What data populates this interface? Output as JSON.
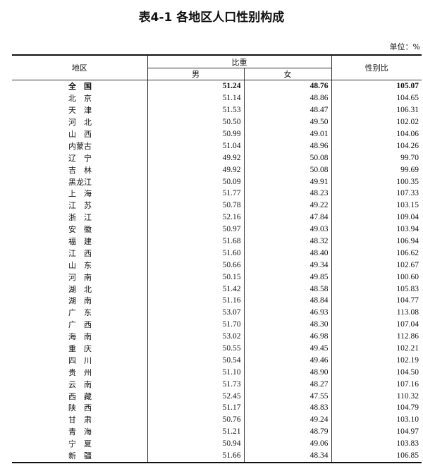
{
  "title": "表4-1 各地区人口性别构成",
  "unit": "单位：%",
  "headers": {
    "region": "地区",
    "share": "比重",
    "male": "男",
    "female": "女",
    "ratio": "性别比"
  },
  "rows": [
    {
      "region": "全　国",
      "male": "51.24",
      "female": "48.76",
      "ratio": "105.07"
    },
    {
      "region": "北　京",
      "male": "51.14",
      "female": "48.86",
      "ratio": "104.65"
    },
    {
      "region": "天　津",
      "male": "51.53",
      "female": "48.47",
      "ratio": "106.31"
    },
    {
      "region": "河　北",
      "male": "50.50",
      "female": "49.50",
      "ratio": "102.02"
    },
    {
      "region": "山　西",
      "male": "50.99",
      "female": "49.01",
      "ratio": "104.06"
    },
    {
      "region": "内蒙古",
      "male": "51.04",
      "female": "48.96",
      "ratio": "104.26"
    },
    {
      "region": "辽　宁",
      "male": "49.92",
      "female": "50.08",
      "ratio": "99.70"
    },
    {
      "region": "吉　林",
      "male": "49.92",
      "female": "50.08",
      "ratio": "99.69"
    },
    {
      "region": "黑龙江",
      "male": "50.09",
      "female": "49.91",
      "ratio": "100.35"
    },
    {
      "region": "上　海",
      "male": "51.77",
      "female": "48.23",
      "ratio": "107.33"
    },
    {
      "region": "江　苏",
      "male": "50.78",
      "female": "49.22",
      "ratio": "103.15"
    },
    {
      "region": "浙　江",
      "male": "52.16",
      "female": "47.84",
      "ratio": "109.04"
    },
    {
      "region": "安　徽",
      "male": "50.97",
      "female": "49.03",
      "ratio": "103.94"
    },
    {
      "region": "福　建",
      "male": "51.68",
      "female": "48.32",
      "ratio": "106.94"
    },
    {
      "region": "江　西",
      "male": "51.60",
      "female": "48.40",
      "ratio": "106.62"
    },
    {
      "region": "山　东",
      "male": "50.66",
      "female": "49.34",
      "ratio": "102.67"
    },
    {
      "region": "河　南",
      "male": "50.15",
      "female": "49.85",
      "ratio": "100.60"
    },
    {
      "region": "湖　北",
      "male": "51.42",
      "female": "48.58",
      "ratio": "105.83"
    },
    {
      "region": "湖　南",
      "male": "51.16",
      "female": "48.84",
      "ratio": "104.77"
    },
    {
      "region": "广　东",
      "male": "53.07",
      "female": "46.93",
      "ratio": "113.08"
    },
    {
      "region": "广　西",
      "male": "51.70",
      "female": "48.30",
      "ratio": "107.04"
    },
    {
      "region": "海　南",
      "male": "53.02",
      "female": "46.98",
      "ratio": "112.86"
    },
    {
      "region": "重　庆",
      "male": "50.55",
      "female": "49.45",
      "ratio": "102.21"
    },
    {
      "region": "四　川",
      "male": "50.54",
      "female": "49.46",
      "ratio": "102.19"
    },
    {
      "region": "贵　州",
      "male": "51.10",
      "female": "48.90",
      "ratio": "104.50"
    },
    {
      "region": "云　南",
      "male": "51.73",
      "female": "48.27",
      "ratio": "107.16"
    },
    {
      "region": "西　藏",
      "male": "52.45",
      "female": "47.55",
      "ratio": "110.32"
    },
    {
      "region": "陕　西",
      "male": "51.17",
      "female": "48.83",
      "ratio": "104.79"
    },
    {
      "region": "甘　肃",
      "male": "50.76",
      "female": "49.24",
      "ratio": "103.10"
    },
    {
      "region": "青　海",
      "male": "51.21",
      "female": "48.79",
      "ratio": "104.97"
    },
    {
      "region": "宁　夏",
      "male": "50.94",
      "female": "49.06",
      "ratio": "103.83"
    },
    {
      "region": "新　疆",
      "male": "51.66",
      "female": "48.34",
      "ratio": "106.85"
    }
  ]
}
